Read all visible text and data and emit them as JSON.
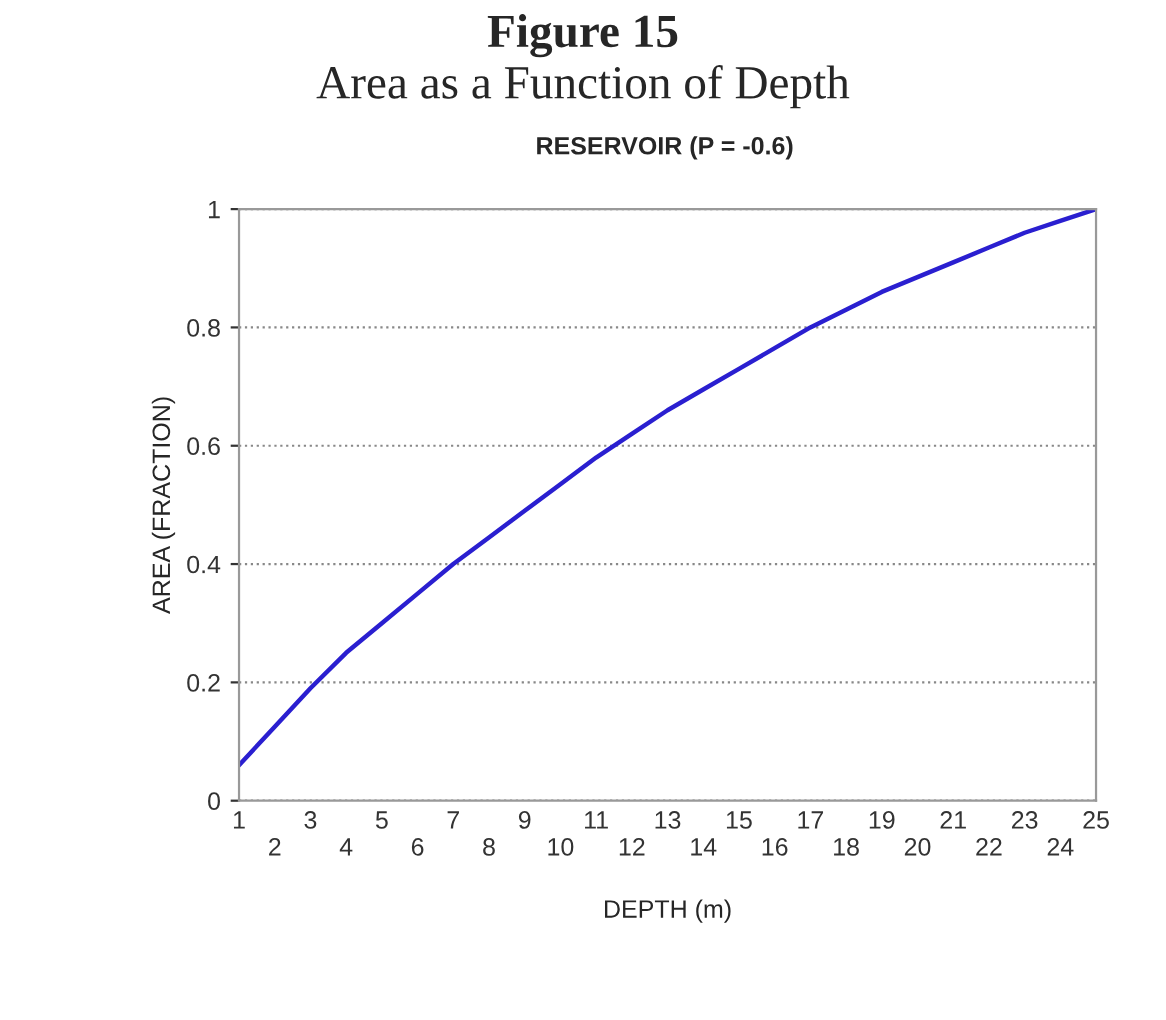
{
  "chart_data": {
    "type": "line",
    "title": "Figure 15",
    "subtitle": "Area as a Function of Depth",
    "annotations": [
      "RESERVOIR (P = -0.6)"
    ],
    "xlabel": "DEPTH (m)",
    "ylabel": "AREA (FRACTION)",
    "categories": [
      "1",
      "2",
      "3",
      "4",
      "5",
      "6",
      "7",
      "8",
      "9",
      "10",
      "11",
      "12",
      "13",
      "14",
      "15",
      "16",
      "17",
      "18",
      "19",
      "20",
      "21",
      "22",
      "23",
      "24",
      "25"
    ],
    "series": [
      {
        "color": "#2a1fd0",
        "values": [
          0.06,
          0.125,
          0.19,
          0.25,
          0.3,
          0.35,
          0.4,
          0.445,
          0.49,
          0.535,
          0.58,
          0.62,
          0.66,
          0.695,
          0.73,
          0.765,
          0.8,
          0.83,
          0.86,
          0.885,
          0.91,
          0.935,
          0.96,
          0.98,
          1.0
        ]
      }
    ],
    "ylim": [
      0,
      1
    ],
    "yticks": [
      0,
      0.2,
      0.4,
      0.6,
      0.8,
      1
    ],
    "grid": "y",
    "marker": "none",
    "line_style": "solid",
    "legend": false
  }
}
